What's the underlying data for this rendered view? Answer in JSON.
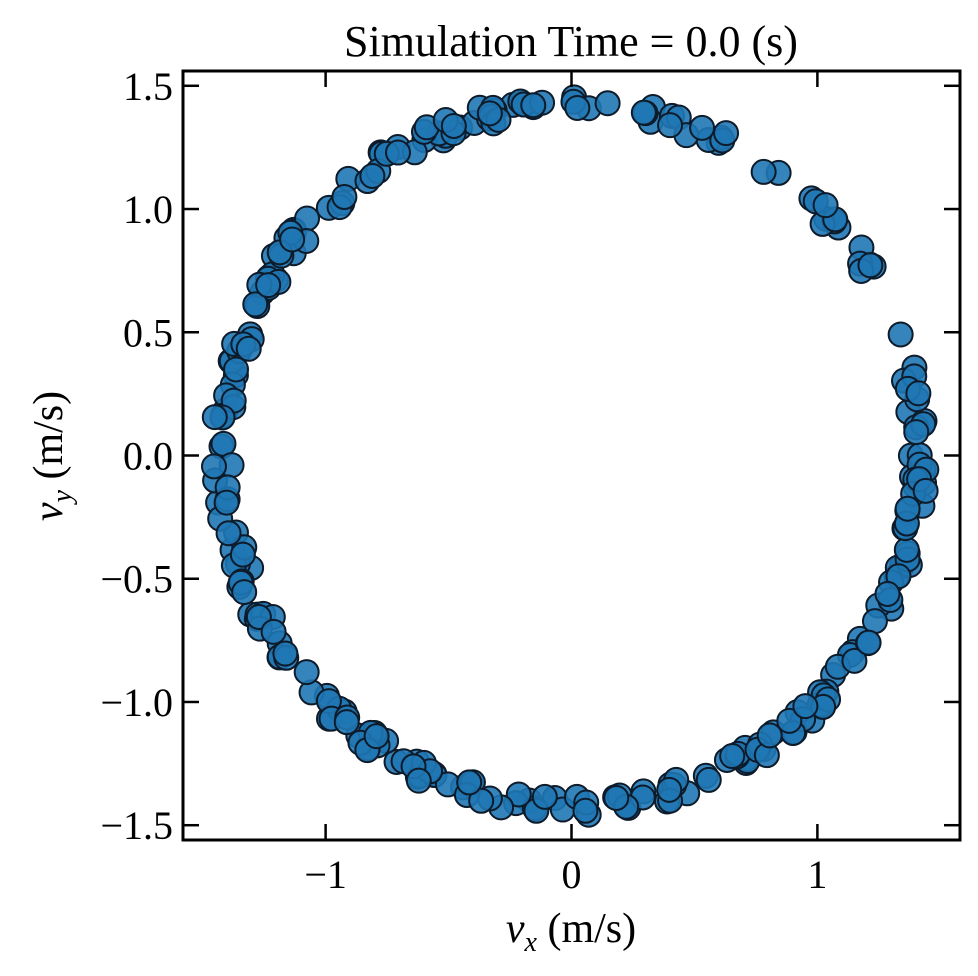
{
  "chart_data": {
    "type": "scatter",
    "title": "Simulation Time = 0.0 (s)",
    "xlabel": {
      "var": "v",
      "sub": "x",
      "unit": " (m/s)"
    },
    "ylabel": {
      "var": "v",
      "sub": "y",
      "unit": " (m/s)"
    },
    "xlim": [
      -1.58,
      1.58
    ],
    "ylim": [
      -1.56,
      1.56
    ],
    "xticks": [
      {
        "value": -1,
        "label": "−1"
      },
      {
        "value": 0,
        "label": "0"
      },
      {
        "value": 1,
        "label": "1"
      }
    ],
    "yticks": [
      {
        "value": 1.5,
        "label": "1.5"
      },
      {
        "value": 1.0,
        "label": "1.0"
      },
      {
        "value": 0.5,
        "label": "0.5"
      },
      {
        "value": 0.0,
        "label": "0.0"
      },
      {
        "value": -0.5,
        "label": "−0.5"
      },
      {
        "value": -1.0,
        "label": "−1.0"
      },
      {
        "value": -1.5,
        "label": "−1.5"
      }
    ],
    "series": [
      {
        "marker_color": "#1f77b4",
        "edge_color": "#0d1b2a",
        "speed_min": 1.38,
        "speed_max": 1.46,
        "n_points": 300
      }
    ],
    "grid": false,
    "legend": "none"
  }
}
